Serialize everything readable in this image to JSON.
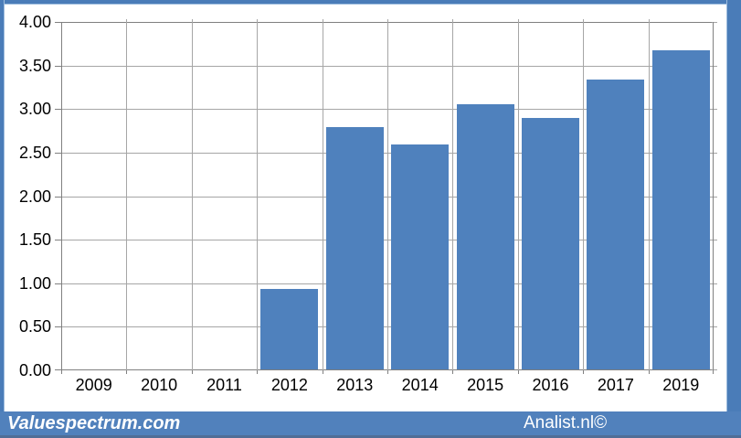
{
  "footer": {
    "brand": "Valuespectrum.com",
    "credit": "Analist.nl©"
  },
  "colors": {
    "bar": "#4f81bd",
    "frame": "#4a7cb8",
    "footer_bg": "#5181bc",
    "footer_bottom_line": "#506e97",
    "gridline": "#a6a6a6",
    "axis": "#808080",
    "label": "#000000",
    "plot_bg": "#ffffff"
  },
  "chart_data": {
    "type": "bar",
    "title": "",
    "categories": [
      "2009",
      "2010",
      "2011",
      "2012",
      "2013",
      "2014",
      "2015",
      "2016",
      "2017",
      "2019"
    ],
    "values": [
      null,
      null,
      null,
      0.93,
      2.79,
      2.59,
      3.05,
      2.9,
      3.34,
      3.67
    ],
    "xlabel": "",
    "ylabel": "",
    "ylim": [
      0,
      4
    ],
    "ytick_step": 0.5,
    "ytick_labels": [
      "0.00",
      "0.50",
      "1.00",
      "1.50",
      "2.00",
      "2.50",
      "3.00",
      "3.50",
      "4.00"
    ],
    "grid": true,
    "legend": false,
    "bar_color": "#4f81bd"
  }
}
